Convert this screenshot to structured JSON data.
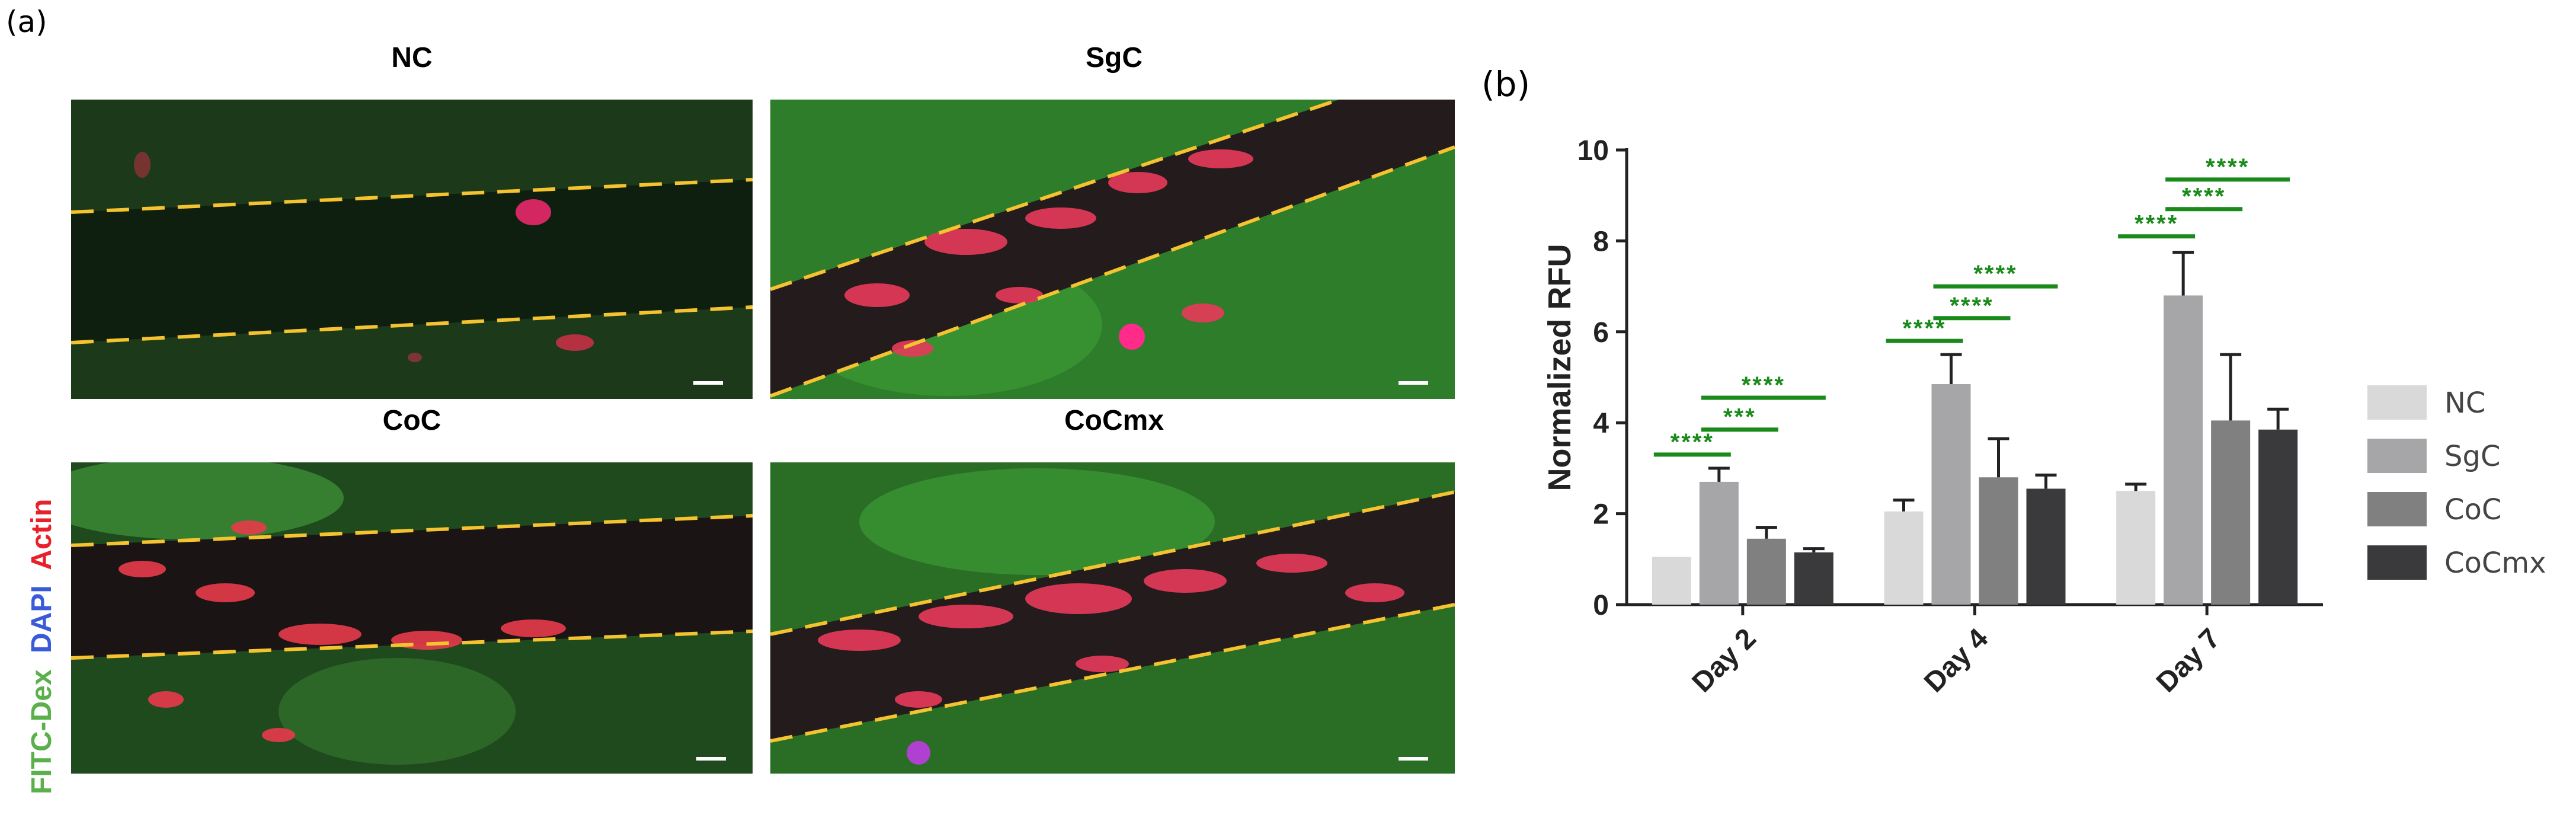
{
  "figure_labels": {
    "panel_a": "(a)",
    "panel_b": "(b)"
  },
  "micrographs": {
    "stain_label": {
      "part1": "FITC-Dex",
      "part2": "DAPI",
      "part3": "Actin"
    },
    "colors": {
      "fitc": "#5ab04a",
      "dapi": "#3a5bd8",
      "actin": "#e8202a",
      "vessel_outline": "#f5c230"
    },
    "panels": [
      {
        "title": "NC"
      },
      {
        "title": "SgC"
      },
      {
        "title": "CoC"
      },
      {
        "title": "CoCmx"
      }
    ]
  },
  "chart_data": {
    "type": "bar",
    "title": "",
    "xlabel": "",
    "ylabel": "Normalized RFU",
    "ylim": [
      0,
      10
    ],
    "yticks": [
      "0",
      "2",
      "4",
      "6",
      "8",
      "10"
    ],
    "categories": [
      "Day 2",
      "Day 4",
      "Day 7"
    ],
    "series": [
      {
        "name": "NC",
        "color": "#d9d9d9",
        "values": [
          1.05,
          2.05,
          2.5
        ],
        "errors": [
          0,
          0.25,
          0.15
        ]
      },
      {
        "name": "SgC",
        "color": "#a6a6a9",
        "values": [
          2.7,
          4.85,
          6.8
        ],
        "errors": [
          0.3,
          0.65,
          0.95
        ]
      },
      {
        "name": "CoC",
        "color": "#808080",
        "values": [
          1.45,
          2.8,
          4.05
        ],
        "errors": [
          0.25,
          0.85,
          1.45
        ]
      },
      {
        "name": "CoCmx",
        "color": "#3a3a3d",
        "values": [
          1.15,
          2.55,
          3.85
        ],
        "errors": [
          0.08,
          0.3,
          0.45
        ]
      }
    ],
    "significance_color": "#1a8a1a",
    "significance": [
      {
        "category": 0,
        "from": 0,
        "to": 1,
        "label": "****",
        "y": 3.3
      },
      {
        "category": 0,
        "from": 1,
        "to": 2,
        "label": "***",
        "y": 3.85
      },
      {
        "category": 0,
        "from": 1,
        "to": 3,
        "label": "****",
        "y": 4.55
      },
      {
        "category": 1,
        "from": 0,
        "to": 1,
        "label": "****",
        "y": 5.8
      },
      {
        "category": 1,
        "from": 1,
        "to": 2,
        "label": "****",
        "y": 6.3
      },
      {
        "category": 1,
        "from": 1,
        "to": 3,
        "label": "****",
        "y": 7.0
      },
      {
        "category": 2,
        "from": 0,
        "to": 1,
        "label": "****",
        "y": 8.1
      },
      {
        "category": 2,
        "from": 1,
        "to": 2,
        "label": "****",
        "y": 8.7
      },
      {
        "category": 2,
        "from": 1,
        "to": 3,
        "label": "****",
        "y": 9.35
      }
    ],
    "legend_position": "right"
  }
}
